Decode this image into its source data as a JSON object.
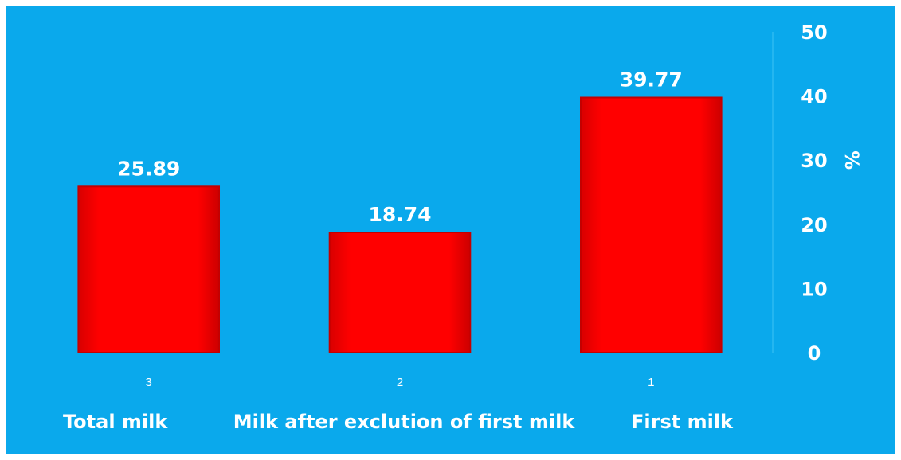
{
  "chart_data": {
    "type": "bar",
    "x": [
      "3",
      "2",
      "1"
    ],
    "categories": [
      "Total milk",
      "Milk after exclution of  first milk",
      "First milk"
    ],
    "values": [
      25.89,
      18.74,
      39.77
    ],
    "data_labels": [
      "25.89",
      "18.74",
      "39.77"
    ],
    "ylabel": "%",
    "ylim": [
      0,
      50
    ],
    "yticks": [
      "0",
      "10",
      "20",
      "30",
      "40",
      "50"
    ],
    "y_axis_side": "right",
    "grid": false,
    "legend": "none",
    "colors": {
      "background": "#0aa9ec",
      "bar": "#ff0000",
      "bar_edge": "#c40000",
      "text": "#ffffff",
      "axis": "#3ec3f3"
    }
  }
}
